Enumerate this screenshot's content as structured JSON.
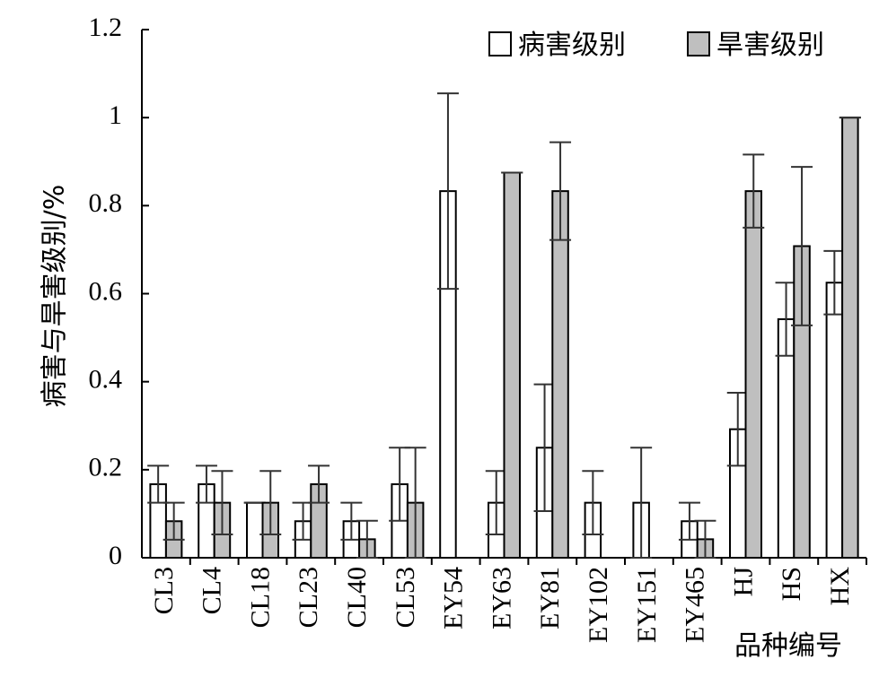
{
  "chart_data": {
    "type": "bar",
    "title": "",
    "xlabel": "品种编号",
    "ylabel": "病害与旱害级别/%",
    "ylim": [
      0,
      1.2
    ],
    "yticks": [
      "0",
      "0.2",
      "0.4",
      "0.6",
      "0.8",
      "1",
      "1.2"
    ],
    "grid": false,
    "legend_position": "top-right",
    "categories": [
      "CL3",
      "CL4",
      "CL18",
      "CL23",
      "CL40",
      "CL53",
      "EY54",
      "EY63",
      "EY81",
      "EY102",
      "EY151",
      "EY465",
      "HJ",
      "HS",
      "HX"
    ],
    "series": [
      {
        "name": "病害级别",
        "color": "#ffffff",
        "values": [
          0.167,
          0.167,
          0.125,
          0.083,
          0.083,
          0.167,
          0.833,
          0.125,
          0.25,
          0.125,
          0.125,
          0.083,
          0.292,
          0.542,
          0.625
        ],
        "errors": [
          0.042,
          0.042,
          0.0,
          0.042,
          0.042,
          0.083,
          0.222,
          0.072,
          0.144,
          0.072,
          0.125,
          0.042,
          0.083,
          0.083,
          0.072
        ]
      },
      {
        "name": "旱害级别",
        "color": "#bfbfbf",
        "values": [
          0.083,
          0.125,
          0.125,
          0.167,
          0.042,
          0.125,
          0.0,
          0.875,
          0.833,
          0.0,
          0.0,
          0.042,
          0.833,
          0.708,
          1.0
        ],
        "errors": [
          0.042,
          0.072,
          0.072,
          0.042,
          0.042,
          0.125,
          0.0,
          0.0,
          0.111,
          0.0,
          0.0,
          0.042,
          0.083,
          0.18,
          0.0
        ]
      }
    ]
  }
}
